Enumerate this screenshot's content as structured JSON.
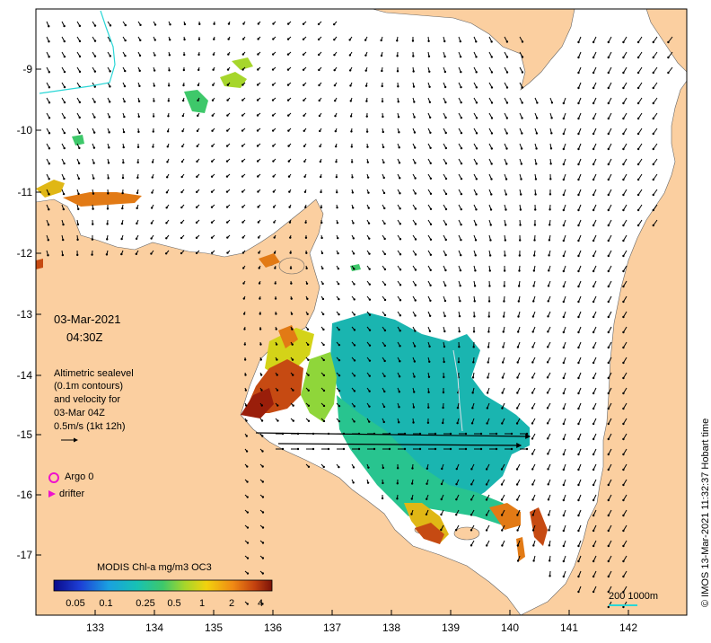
{
  "map": {
    "date": "03-Mar-2021",
    "time": "04:30Z",
    "info_lines": [
      "Altimetric sealevel",
      "(0.1m contours)",
      "and velocity for",
      "03-Mar 04Z",
      "0.5m/s (1kt 12h)"
    ],
    "legend": {
      "argo": "Argo 0",
      "drifter": "drifter",
      "argo_color": "#ee11cc",
      "drifter_color": "#ee11cc"
    },
    "colorbar": {
      "title": "MODIS Chl-a mg/m3 OC3",
      "ticks": [
        "0.05",
        "0.1",
        "0.25",
        "0.5",
        "1",
        "2",
        "4"
      ],
      "colors": [
        "#0a0a8a",
        "#1d3fd6",
        "#1aa0e0",
        "#17c1b4",
        "#3ec86a",
        "#a6d62b",
        "#f2d20e",
        "#f08a14",
        "#c4420f",
        "#7a1208"
      ]
    },
    "y_ticks": [
      "-9",
      "-10",
      "-11",
      "-12",
      "-13",
      "-14",
      "-15",
      "-16",
      "-17"
    ],
    "x_ticks": [
      "133",
      "134",
      "135",
      "136",
      "137",
      "138",
      "139",
      "140",
      "141",
      "142"
    ],
    "scale_label": "200  1000m",
    "side_text": "© IMOS 13-Mar-2021 11:32:37 Hobart time",
    "land_color": "#fbcfa0",
    "sea_color": "#ffffff"
  }
}
